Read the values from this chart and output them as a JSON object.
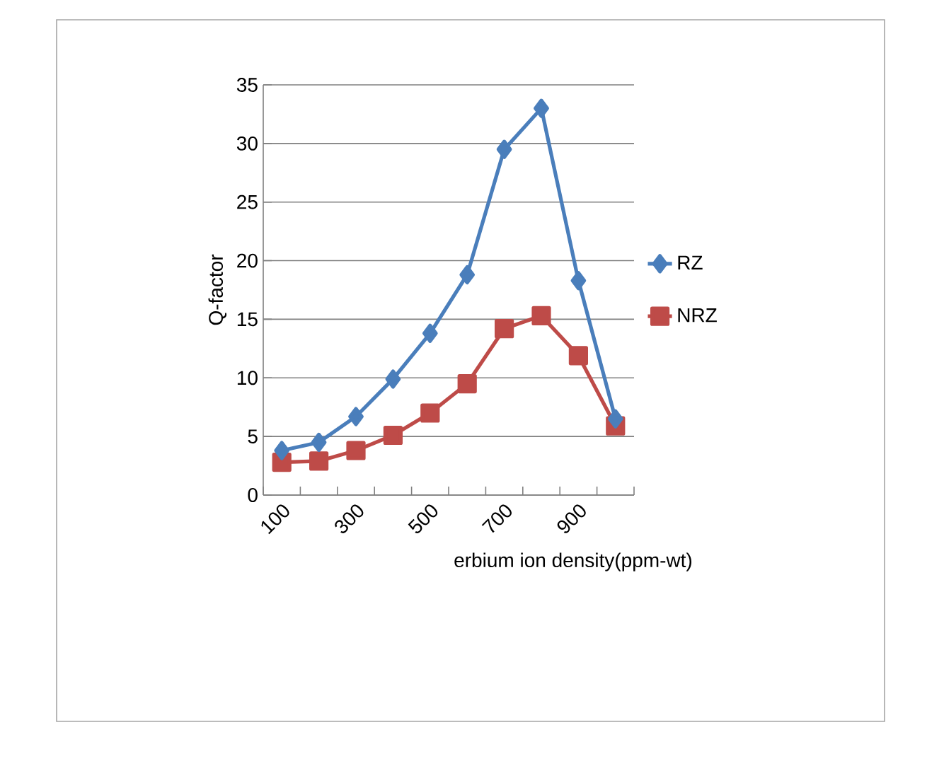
{
  "chart_data": {
    "type": "line",
    "xlabel": "erbium ion density(ppm-wt)",
    "ylabel": "Q-factor",
    "categories": [
      "100",
      null,
      "300",
      null,
      "500",
      null,
      "700",
      null,
      "900",
      null
    ],
    "series": [
      {
        "name": "RZ",
        "color": "#4a7ebb",
        "marker": "diamond",
        "values": [
          3.8,
          4.5,
          6.7,
          9.9,
          13.8,
          18.8,
          29.5,
          33,
          18.3,
          6.5
        ]
      },
      {
        "name": "NRZ",
        "color": "#be4b48",
        "marker": "square",
        "values": [
          2.8,
          2.9,
          3.8,
          5.1,
          7.0,
          9.5,
          14.2,
          15.3,
          11.9,
          5.9
        ]
      }
    ],
    "ylim": [
      0,
      35
    ],
    "yticks": [
      0,
      5,
      10,
      15,
      20,
      25,
      30,
      35
    ],
    "grid": "y",
    "legend": "right"
  }
}
